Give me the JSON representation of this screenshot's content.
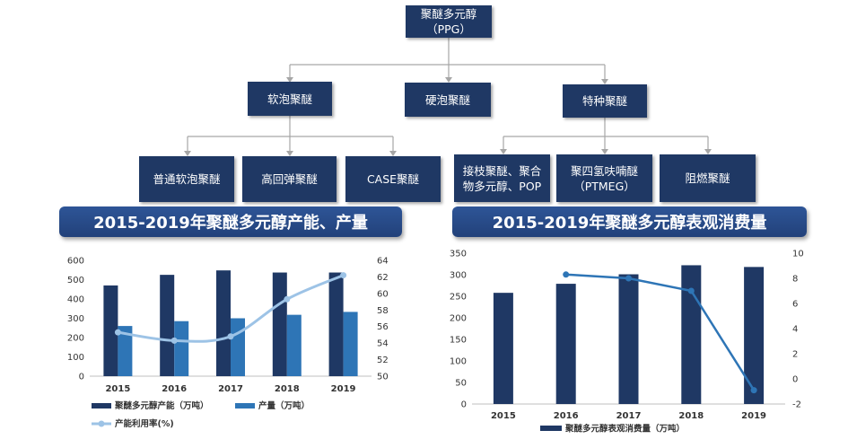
{
  "tree": {
    "root": {
      "name": "聚醚多元醇",
      "abbr": "（PPG）"
    },
    "level1": [
      "软泡聚醚",
      "硬泡聚醚",
      "特种聚醚"
    ],
    "soft_children": [
      "普通软泡聚醚",
      "高回弹聚醚",
      "CASE聚醚"
    ],
    "special_children": [
      {
        "line1": "接枝聚醚、聚合",
        "line2": "物多元醇、POP"
      },
      {
        "line1": "聚四氢呋喃醚",
        "line2": "（PTMEG）"
      },
      {
        "line1": "阻燃聚醚",
        "line2": ""
      }
    ]
  },
  "chart1_title": "2015-2019年聚醚多元醇产能、产量",
  "chart2_title": "2015-2019年聚醚多元醇表观消费量",
  "chart_data": [
    {
      "type": "bar",
      "title": "2015-2019年聚醚多元醇产能、产量",
      "categories": [
        "2015",
        "2016",
        "2017",
        "2018",
        "2019"
      ],
      "series": [
        {
          "name": "聚醚多元醇产能（万吨）",
          "type": "bar",
          "axis": "left",
          "values": [
            470,
            525,
            548,
            537,
            537
          ],
          "color": "#1f3864"
        },
        {
          "name": "产量（万吨）",
          "type": "bar",
          "axis": "left",
          "values": [
            260,
            285,
            300,
            318,
            333
          ],
          "color": "#2e75b6"
        },
        {
          "name": "产能利用率(%)",
          "type": "line",
          "axis": "right",
          "values": [
            55.3,
            54.3,
            54.8,
            59.3,
            62.2
          ],
          "color": "#9dc3e6"
        }
      ],
      "ylim": [
        0,
        600
      ],
      "yticks": [
        "0",
        "100",
        "200",
        "300",
        "400",
        "500",
        "600"
      ],
      "y2lim": [
        50,
        64
      ],
      "y2ticks": [
        "50",
        "52",
        "54",
        "56",
        "58",
        "60",
        "62",
        "64"
      ],
      "grid": false,
      "legend_position": "bottom"
    },
    {
      "type": "bar",
      "title": "2015-2019年聚醚多元醇表观消费量",
      "categories": [
        "2015",
        "2016",
        "2017",
        "2018",
        "2019"
      ],
      "series": [
        {
          "name": "聚醚多元醇表观消费量（万吨）",
          "type": "bar",
          "axis": "left",
          "values": [
            258,
            279,
            301,
            322,
            318
          ],
          "color": "#1f3864"
        },
        {
          "name": "",
          "type": "line",
          "axis": "right",
          "values": [
            null,
            8.3,
            8.0,
            7.0,
            -0.9
          ],
          "color": "#2e75b6"
        }
      ],
      "ylim": [
        0,
        350
      ],
      "yticks": [
        "0",
        "50",
        "100",
        "150",
        "200",
        "250",
        "300",
        "350"
      ],
      "y2lim": [
        -2,
        10
      ],
      "y2ticks": [
        "-2",
        "0",
        "2",
        "4",
        "6",
        "8",
        "10"
      ],
      "grid": false,
      "legend_position": "bottom"
    }
  ]
}
